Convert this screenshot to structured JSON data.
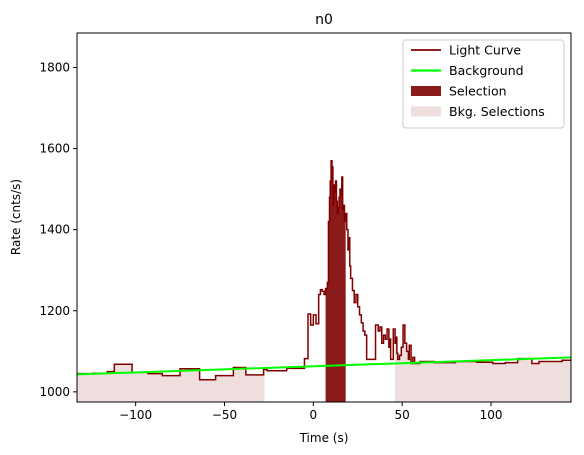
{
  "chart_data": {
    "type": "line",
    "title": "n0",
    "xlabel": "Time (s)",
    "ylabel": "Rate (cnts/s)",
    "xlim": [
      -133,
      145
    ],
    "ylim": [
      975,
      1885
    ],
    "xticks": [
      -100,
      -50,
      0,
      50,
      100
    ],
    "yticks": [
      1000,
      1200,
      1400,
      1600,
      1800
    ],
    "grid": false,
    "legend_position": "top-right",
    "colors": {
      "light_curve": "#800000",
      "background": "#00ff00",
      "selection": "#8b1a1a",
      "bkg_selection": "#eedede"
    },
    "legend": [
      {
        "label": "Light Curve",
        "kind": "line",
        "color": "#800000"
      },
      {
        "label": "Background",
        "kind": "line",
        "color": "#00ff00"
      },
      {
        "label": "Selection",
        "kind": "patch",
        "color": "#8b1a1a"
      },
      {
        "label": "Bkg. Selections",
        "kind": "patch",
        "color": "#eedede"
      }
    ],
    "background_line": {
      "x": [
        -133,
        145
      ],
      "y": [
        1043,
        1085
      ]
    },
    "selection": {
      "x_start": 6.9,
      "x_end": 18.2
    },
    "bkg_selections": [
      {
        "x_start": -133,
        "x_end": -27.5
      },
      {
        "x_start": 46,
        "x_end": 145
      }
    ],
    "light_curve_steps": [
      [
        -133,
        1045
      ],
      [
        -124,
        1046
      ],
      [
        -116,
        1050
      ],
      [
        -112,
        1068
      ],
      [
        -102,
        1048
      ],
      [
        -93,
        1045
      ],
      [
        -85,
        1040
      ],
      [
        -75,
        1057
      ],
      [
        -64,
        1030
      ],
      [
        -55,
        1040
      ],
      [
        -45,
        1060
      ],
      [
        -38,
        1042
      ],
      [
        -28,
        1055
      ],
      [
        -26,
        1052
      ],
      [
        -15,
        1058
      ],
      [
        -5,
        1082
      ],
      [
        -3,
        1192
      ],
      [
        -1.5,
        1165
      ],
      [
        0,
        1190
      ],
      [
        1.5,
        1168
      ],
      [
        3,
        1240
      ],
      [
        4,
        1252
      ],
      [
        5,
        1248
      ],
      [
        6,
        1240
      ],
      [
        6.9,
        1255
      ],
      [
        7.9,
        1270
      ],
      [
        8.5,
        1420
      ],
      [
        9.1,
        1480
      ],
      [
        9.5,
        1520
      ],
      [
        10,
        1570
      ],
      [
        10.5,
        1555
      ],
      [
        11,
        1460
      ],
      [
        11.5,
        1510
      ],
      [
        12,
        1490
      ],
      [
        12.5,
        1520
      ],
      [
        13,
        1470
      ],
      [
        13.5,
        1440
      ],
      [
        14,
        1455
      ],
      [
        14.5,
        1480
      ],
      [
        15,
        1500
      ],
      [
        15.5,
        1485
      ],
      [
        16,
        1530
      ],
      [
        16.5,
        1450
      ],
      [
        17,
        1460
      ],
      [
        17.5,
        1420
      ],
      [
        18.2,
        1440
      ],
      [
        18.8,
        1400
      ],
      [
        19.5,
        1350
      ],
      [
        20,
        1380
      ],
      [
        20.5,
        1310
      ],
      [
        21,
        1280
      ],
      [
        22,
        1250
      ],
      [
        23,
        1220
      ],
      [
        24,
        1240
      ],
      [
        25,
        1210
      ],
      [
        26,
        1190
      ],
      [
        27,
        1170
      ],
      [
        28,
        1150
      ],
      [
        29,
        1140
      ],
      [
        30,
        1080
      ],
      [
        35,
        1165
      ],
      [
        36.5,
        1150
      ],
      [
        37.5,
        1160
      ],
      [
        38.5,
        1120
      ],
      [
        39.5,
        1140
      ],
      [
        40.5,
        1130
      ],
      [
        41.5,
        1155
      ],
      [
        42.5,
        1110
      ],
      [
        43,
        1130
      ],
      [
        43.5,
        1080
      ],
      [
        45,
        1155
      ],
      [
        46,
        1120
      ],
      [
        46.5,
        1135
      ],
      [
        47,
        1095
      ],
      [
        47.5,
        1080
      ],
      [
        48.5,
        1090
      ],
      [
        49.5,
        1110
      ],
      [
        50.5,
        1165
      ],
      [
        51.5,
        1120
      ],
      [
        52.5,
        1100
      ],
      [
        53.5,
        1080
      ],
      [
        54,
        1115
      ],
      [
        55,
        1070
      ],
      [
        56,
        1085
      ],
      [
        57,
        1070
      ],
      [
        60,
        1075
      ],
      [
        68,
        1072
      ],
      [
        80,
        1075
      ],
      [
        92,
        1073
      ],
      [
        101,
        1070
      ],
      [
        108,
        1072
      ],
      [
        112,
        1072
      ],
      [
        115,
        1082
      ],
      [
        123,
        1070
      ],
      [
        127,
        1075
      ],
      [
        140,
        1078
      ],
      [
        145,
        1078
      ]
    ]
  }
}
